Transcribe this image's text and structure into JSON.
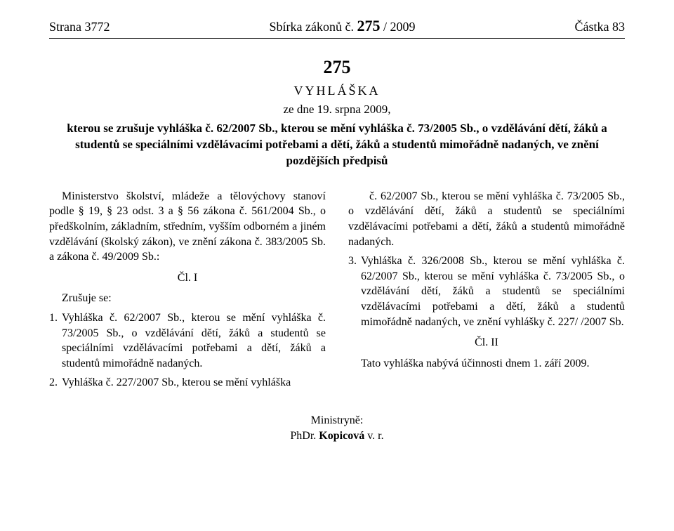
{
  "header": {
    "left": "Strana 3772",
    "center_prefix": "Sbírka zákonů č. ",
    "center_num": "275",
    "center_suffix": " / 2009",
    "right": "Částka 83"
  },
  "doc": {
    "number": "275",
    "type": "VYHLÁŠKA",
    "date": "ze dne 19. srpna 2009,",
    "title": "kterou se zrušuje vyhláška č. 62/2007 Sb., kterou se mění vyhláška č. 73/2005 Sb., o vzdělávání dětí, žáků a studentů se speciálními vzdělávacími potřebami a dětí, žáků a studentů mimořádně nadaných, ve znění pozdějších předpisů"
  },
  "left_col": {
    "intro": "Ministerstvo školství, mládeže a tělovýchovy stanoví podle § 19, § 23 odst. 3 a § 56 zákona č. 561/2004 Sb., o předškolním, základním, středním, vyšším odborném a jiném vzdělávání (školský zákon), ve znění zákona č. 383/2005 Sb. a zákona č. 49/2009 Sb.:",
    "article": "Čl. I",
    "cancel_heading": "Zrušuje se:",
    "items": [
      {
        "n": "1.",
        "t": "Vyhláška č. 62/2007 Sb., kterou se mění vyhláška č. 73/2005 Sb., o vzdělávání dětí, žáků a studentů se speciálními vzdělávacími potřebami a dětí, žáků a studentů mimořádně nadaných."
      },
      {
        "n": "2.",
        "t": "Vyhláška č. 227/2007 Sb., kterou se mění vyhláška"
      }
    ]
  },
  "right_col": {
    "cont": "č. 62/2007 Sb., kterou se mění vyhláška č. 73/2005 Sb., o vzdělávání dětí, žáků a studentů se speciálními vzdělávacími potřebami a dětí, žáků a studentů mimořádně nadaných.",
    "item3": {
      "n": "3.",
      "t": "Vyhláška č. 326/2008 Sb., kterou se mění vyhláška č. 62/2007 Sb., kterou se mění vyhláška č. 73/2005 Sb., o vzdělávání dětí, žáků a studentů se speciálními vzdělávacími potřebami a dětí, žáků a studentů mimořádně nadaných, ve znění vyhlášky č. 227/ /2007 Sb."
    },
    "article2": "Čl. II",
    "effect": "Tato vyhláška nabývá účinnosti dnem 1. září 2009."
  },
  "signature": {
    "role": "Ministryně:",
    "name_prefix": "PhDr. ",
    "name_bold": "Kopicová",
    "name_suffix": " v. r."
  }
}
